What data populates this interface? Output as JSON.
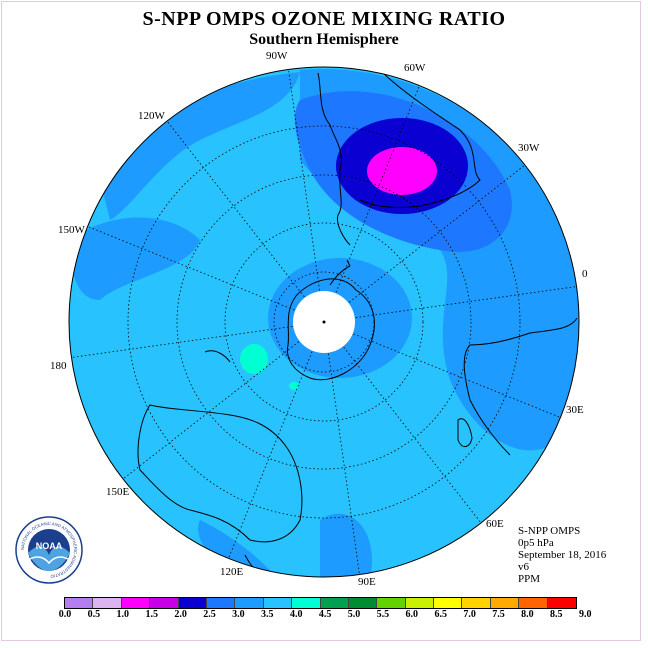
{
  "header": {
    "title": "S-NPP OMPS OZONE MIXING RATIO",
    "subtitle": "Southern Hemisphere"
  },
  "longitude_labels": [
    "90W",
    "60W",
    "30W",
    "0",
    "30E",
    "60E",
    "90E",
    "120E",
    "150E",
    "180",
    "150W",
    "120W"
  ],
  "info": {
    "instrument": "S-NPP OMPS",
    "level": "0p5 hPa",
    "date": "September 18, 2016",
    "version": "v6",
    "units": "PPM"
  },
  "logo": {
    "text": "NOAA",
    "ring_text": "NATIONAL OCEANIC AND ATMOSPHERIC ADMINISTRATION · U.S. DEPARTMENT OF COMMERCE"
  },
  "colorbar": {
    "ticks": [
      "0.0",
      "0.5",
      "1.0",
      "1.5",
      "2.0",
      "2.5",
      "3.0",
      "3.5",
      "4.0",
      "4.5",
      "5.0",
      "5.5",
      "6.0",
      "6.5",
      "7.0",
      "7.5",
      "8.0",
      "8.5",
      "9.0"
    ],
    "colors": [
      "#b57ef0",
      "#dcb4f0",
      "#ff00ff",
      "#c800e6",
      "#0a00d2",
      "#1e78ff",
      "#1e9bff",
      "#28c3ff",
      "#00ffd2",
      "#00a050",
      "#008c32",
      "#64d200",
      "#c8f000",
      "#ffff00",
      "#ffd200",
      "#ffaa00",
      "#ff6400",
      "#ff0000",
      "#a05a32"
    ]
  },
  "chart_data": {
    "type": "heatmap",
    "projection": "polar stereographic, Southern Hemisphere",
    "variable": "Ozone mixing ratio",
    "units": "PPM",
    "pressure_level": "0p5 hPa",
    "date": "September 18, 2016",
    "regions": [
      {
        "area": "background most of hemisphere",
        "value_range": [
          3.0,
          3.5
        ]
      },
      {
        "area": "outer band near 0-30E, 120W-150W sectors",
        "value_range": [
          2.5,
          3.0
        ]
      },
      {
        "area": "around South America 30W-60W",
        "value_range": [
          2.0,
          2.5
        ]
      },
      {
        "area": "core over south Atlantic near 45W",
        "value_range": [
          1.5,
          2.0
        ]
      },
      {
        "area": "maximum core",
        "value_range": [
          1.0,
          1.5
        ]
      },
      {
        "area": "small patch south of Australia",
        "value_range": [
          3.5,
          4.0
        ]
      },
      {
        "area": "polar hole (no data)",
        "value_range": null
      }
    ]
  }
}
